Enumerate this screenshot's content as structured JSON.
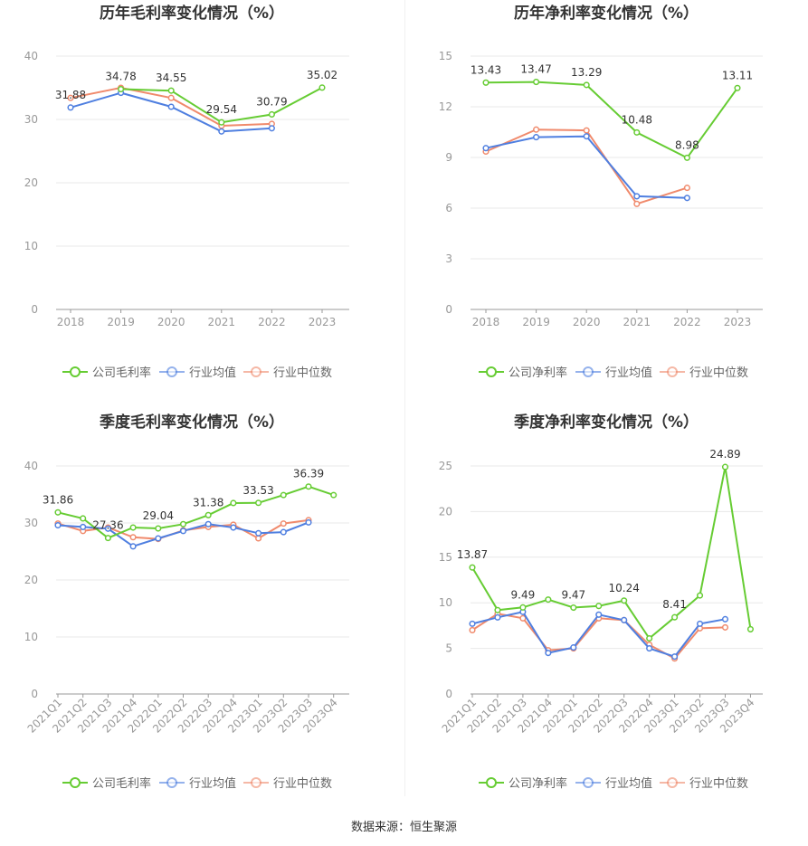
{
  "source": {
    "label": "数据来源：恒生聚源"
  },
  "colors": {
    "company": "#66cc33",
    "avg": "#4f7fe0",
    "median": "#f08a6c"
  },
  "charts": [
    {
      "chart_data": {
        "type": "line",
        "title": "历年毛利率变化情况（%）",
        "categories": [
          "2018",
          "2019",
          "2020",
          "2021",
          "2022",
          "2023"
        ],
        "ylim": [
          0,
          40
        ],
        "yticks": [
          0,
          10,
          20,
          30,
          40
        ],
        "series": [
          {
            "name": "公司毛利率",
            "key": "company",
            "values": [
              null,
              34.78,
              34.55,
              29.54,
              30.79,
              35.02
            ]
          },
          {
            "name": "行业均值",
            "key": "avg",
            "values": [
              31.88,
              34.2,
              32.0,
              28.1,
              28.6,
              null
            ]
          },
          {
            "name": "行业中位数",
            "key": "median",
            "values": [
              33.4,
              35.0,
              33.4,
              29.0,
              29.3,
              null
            ]
          }
        ],
        "labels": [
          {
            "index": 0,
            "series": 1,
            "text": "31.88"
          },
          {
            "index": 1,
            "series": 0,
            "text": "34.78"
          },
          {
            "index": 2,
            "series": 0,
            "text": "34.55"
          },
          {
            "index": 3,
            "series": 0,
            "text": "29.54"
          },
          {
            "index": 4,
            "series": 0,
            "text": "30.79"
          },
          {
            "index": 5,
            "series": 0,
            "text": "35.02"
          }
        ],
        "rotate_ticks": false
      }
    },
    {
      "chart_data": {
        "type": "line",
        "title": "历年净利率变化情况（%）",
        "categories": [
          "2018",
          "2019",
          "2020",
          "2021",
          "2022",
          "2023"
        ],
        "ylim": [
          0,
          15
        ],
        "yticks": [
          0,
          3,
          6,
          9,
          12,
          15
        ],
        "series": [
          {
            "name": "公司净利率",
            "key": "company",
            "values": [
              13.43,
              13.47,
              13.29,
              10.48,
              8.98,
              13.11
            ]
          },
          {
            "name": "行业均值",
            "key": "avg",
            "values": [
              9.55,
              10.2,
              10.25,
              6.7,
              6.6,
              null
            ]
          },
          {
            "name": "行业中位数",
            "key": "median",
            "values": [
              9.35,
              10.65,
              10.6,
              6.25,
              7.2,
              null
            ]
          }
        ],
        "labels": [
          {
            "index": 0,
            "series": 0,
            "text": "13.43"
          },
          {
            "index": 1,
            "series": 0,
            "text": "13.47"
          },
          {
            "index": 2,
            "series": 0,
            "text": "13.29"
          },
          {
            "index": 3,
            "series": 0,
            "text": "10.48"
          },
          {
            "index": 4,
            "series": 0,
            "text": "8.98"
          },
          {
            "index": 5,
            "series": 0,
            "text": "13.11"
          }
        ],
        "rotate_ticks": false
      }
    },
    {
      "chart_data": {
        "type": "line",
        "title": "季度毛利率变化情况（%）",
        "categories": [
          "2021Q1",
          "2021Q2",
          "2021Q3",
          "2021Q4",
          "2022Q1",
          "2022Q2",
          "2022Q3",
          "2022Q4",
          "2023Q1",
          "2023Q2",
          "2023Q3",
          "2023Q4"
        ],
        "ylim": [
          0,
          40
        ],
        "yticks": [
          0,
          10,
          20,
          30,
          40
        ],
        "series": [
          {
            "name": "公司毛利率",
            "key": "company",
            "values": [
              31.86,
              30.8,
              27.36,
              29.2,
              29.04,
              29.8,
              31.38,
              33.5,
              33.53,
              34.9,
              36.39,
              34.9
            ]
          },
          {
            "name": "行业均值",
            "key": "avg",
            "values": [
              29.6,
              29.3,
              29.0,
              25.9,
              27.3,
              28.6,
              29.8,
              29.2,
              28.2,
              28.4,
              30.1,
              null
            ]
          },
          {
            "name": "行业中位数",
            "key": "median",
            "values": [
              29.9,
              28.6,
              29.2,
              27.5,
              27.2,
              28.7,
              29.3,
              29.7,
              27.3,
              29.9,
              30.5,
              null
            ]
          }
        ],
        "labels": [
          {
            "index": 0,
            "series": 0,
            "text": "31.86"
          },
          {
            "index": 2,
            "series": 0,
            "text": "27.36"
          },
          {
            "index": 4,
            "series": 0,
            "text": "29.04"
          },
          {
            "index": 6,
            "series": 0,
            "text": "31.38"
          },
          {
            "index": 8,
            "series": 0,
            "text": "33.53"
          },
          {
            "index": 10,
            "series": 0,
            "text": "36.39"
          }
        ],
        "rotate_ticks": true
      }
    },
    {
      "chart_data": {
        "type": "line",
        "title": "季度净利率变化情况（%）",
        "categories": [
          "2021Q1",
          "2021Q2",
          "2021Q3",
          "2021Q4",
          "2022Q1",
          "2022Q2",
          "2022Q3",
          "2022Q4",
          "2023Q1",
          "2023Q2",
          "2023Q3",
          "2023Q4"
        ],
        "ylim": [
          0,
          25
        ],
        "yticks": [
          0,
          5,
          10,
          15,
          20,
          25
        ],
        "series": [
          {
            "name": "公司净利率",
            "key": "company",
            "values": [
              13.87,
              9.2,
              9.49,
              10.35,
              9.47,
              9.65,
              10.24,
              6.1,
              8.41,
              10.8,
              24.89,
              7.1
            ]
          },
          {
            "name": "行业均值",
            "key": "avg",
            "values": [
              7.7,
              8.4,
              9.0,
              4.5,
              5.1,
              8.7,
              8.1,
              5.0,
              4.1,
              7.7,
              8.2,
              null
            ]
          },
          {
            "name": "行业中位数",
            "key": "median",
            "values": [
              7.0,
              8.8,
              8.3,
              4.8,
              5.0,
              8.3,
              8.1,
              5.4,
              3.9,
              7.2,
              7.3,
              null
            ]
          }
        ],
        "labels": [
          {
            "index": 0,
            "series": 0,
            "text": "13.87"
          },
          {
            "index": 2,
            "series": 0,
            "text": "9.49"
          },
          {
            "index": 4,
            "series": 0,
            "text": "9.47"
          },
          {
            "index": 6,
            "series": 0,
            "text": "10.24"
          },
          {
            "index": 8,
            "series": 0,
            "text": "8.41"
          },
          {
            "index": 10,
            "series": 0,
            "text": "24.89"
          }
        ],
        "rotate_ticks": true
      }
    }
  ]
}
